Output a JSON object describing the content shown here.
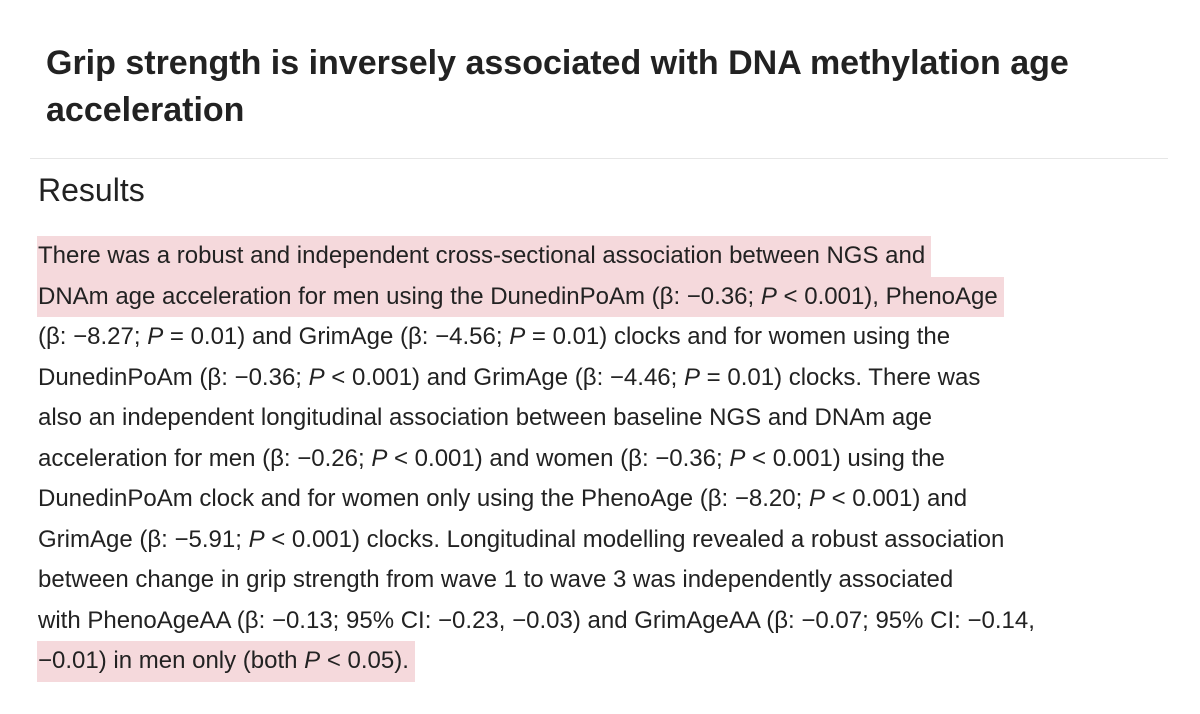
{
  "header": {
    "title": "Grip strength is inversely associated with DNA methylation age acceleration"
  },
  "section": {
    "heading": "Results",
    "lines": [
      {
        "runs": [
          "There was a robust and independent cross-sectional association between NGS and"
        ],
        "highlight": true
      },
      {
        "runs": [
          "DNAm age acceleration for men using the DunedinPoAm (β: −0.36; ",
          {
            "italic": "P"
          },
          " < 0.001), PhenoAge"
        ],
        "highlight": true
      },
      {
        "runs": [
          "(β: −8.27; ",
          {
            "italic": "P"
          },
          " = 0.01) and GrimAge (β: −4.56; ",
          {
            "italic": "P"
          },
          " = 0.01) clocks and for women using the"
        ]
      },
      {
        "runs": [
          "DunedinPoAm (β: −0.36; ",
          {
            "italic": "P"
          },
          " < 0.001) and GrimAge (β: −4.46; ",
          {
            "italic": "P"
          },
          " = 0.01) clocks. There was"
        ]
      },
      {
        "runs": [
          "also an independent longitudinal association between baseline NGS and DNAm age"
        ]
      },
      {
        "runs": [
          "acceleration for men (β: −0.26; ",
          {
            "italic": "P"
          },
          " < 0.001) and women (β: −0.36; ",
          {
            "italic": "P"
          },
          " < 0.001) using the"
        ]
      },
      {
        "runs": [
          "DunedinPoAm clock and for women only using the PhenoAge (β: −8.20; ",
          {
            "italic": "P"
          },
          " < 0.001) and"
        ]
      },
      {
        "runs": [
          "GrimAge (β: −5.91; ",
          {
            "italic": "P"
          },
          " < 0.001) clocks. Longitudinal modelling revealed a robust association"
        ]
      },
      {
        "runs": [
          "between change in grip strength from wave 1 to wave 3 was independently associated"
        ]
      },
      {
        "runs": [
          "with PhenoAgeAA (β: −0.13; 95% CI: −0.23, −0.03) and GrimAgeAA (β: −0.07; 95% CI: −0.14,"
        ]
      },
      {
        "runs": [
          "−0.01) in men only (both ",
          {
            "italic": "P"
          },
          " < 0.05)."
        ],
        "highlight": true
      }
    ]
  }
}
